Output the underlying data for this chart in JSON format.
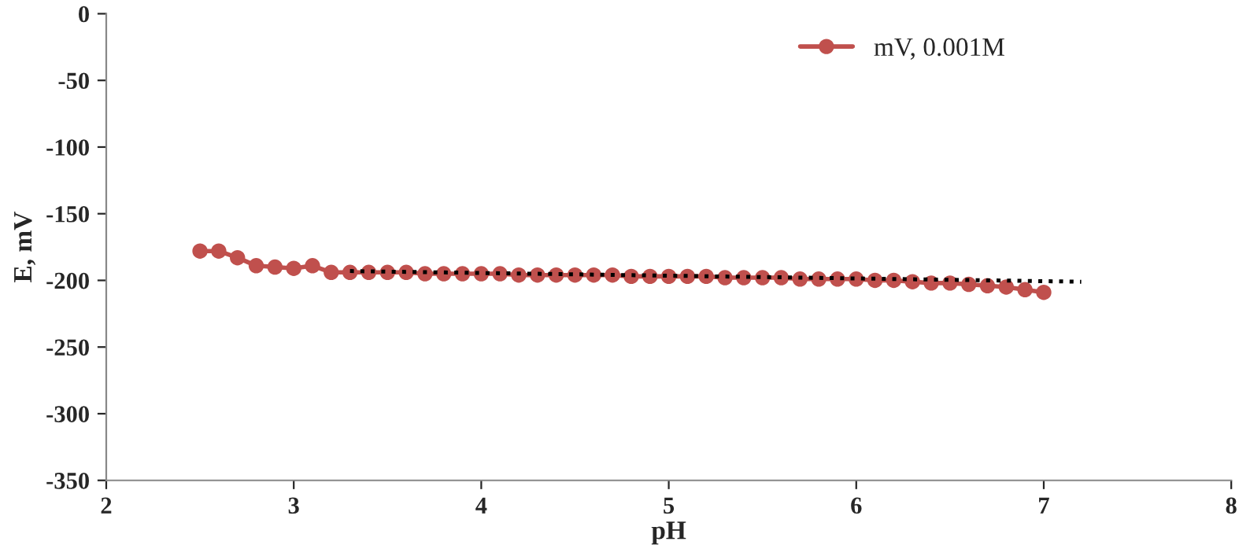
{
  "chart_data": {
    "type": "line",
    "xlabel": "pH",
    "ylabel": "E, mV",
    "xlim": [
      2,
      8
    ],
    "xticks": [
      2,
      3,
      4,
      5,
      6,
      7,
      8
    ],
    "ylim": [
      -350,
      0
    ],
    "yticks": [
      -350,
      -300,
      -250,
      -200,
      -150,
      -100,
      -50,
      0
    ],
    "grid": false,
    "legend": "top right",
    "series": [
      {
        "name": "mV, 0.001M",
        "color": "#c0504d",
        "line_style": "solid",
        "marker": "circle",
        "x": [
          2.5,
          2.6,
          2.7,
          2.8,
          2.9,
          3.0,
          3.1,
          3.2,
          3.3,
          3.4,
          3.5,
          3.6,
          3.7,
          3.8,
          3.9,
          4.0,
          4.1,
          4.2,
          4.3,
          4.4,
          4.5,
          4.6,
          4.7,
          4.8,
          4.9,
          5.0,
          5.1,
          5.2,
          5.3,
          5.4,
          5.5,
          5.6,
          5.7,
          5.8,
          5.9,
          6.0,
          6.1,
          6.2,
          6.3,
          6.4,
          6.5,
          6.6,
          6.7,
          6.8,
          6.9,
          7.0
        ],
        "values": [
          -178,
          -178,
          -183,
          -189,
          -190,
          -191,
          -189,
          -194,
          -194,
          -194,
          -194,
          -194,
          -195,
          -195,
          -195,
          -195,
          -195,
          -196,
          -196,
          -196,
          -196,
          -196,
          -196,
          -197,
          -197,
          -197,
          -197,
          -197,
          -198,
          -198,
          -198,
          -198,
          -199,
          -199,
          -199,
          -199,
          -200,
          -200,
          -201,
          -202,
          -202,
          -203,
          -204,
          -205,
          -207,
          -209
        ]
      },
      {
        "color": "#000000",
        "line_style": "dotted",
        "marker": "none",
        "x": [
          3.3,
          7.2
        ],
        "values": [
          -193,
          -201
        ]
      }
    ]
  }
}
